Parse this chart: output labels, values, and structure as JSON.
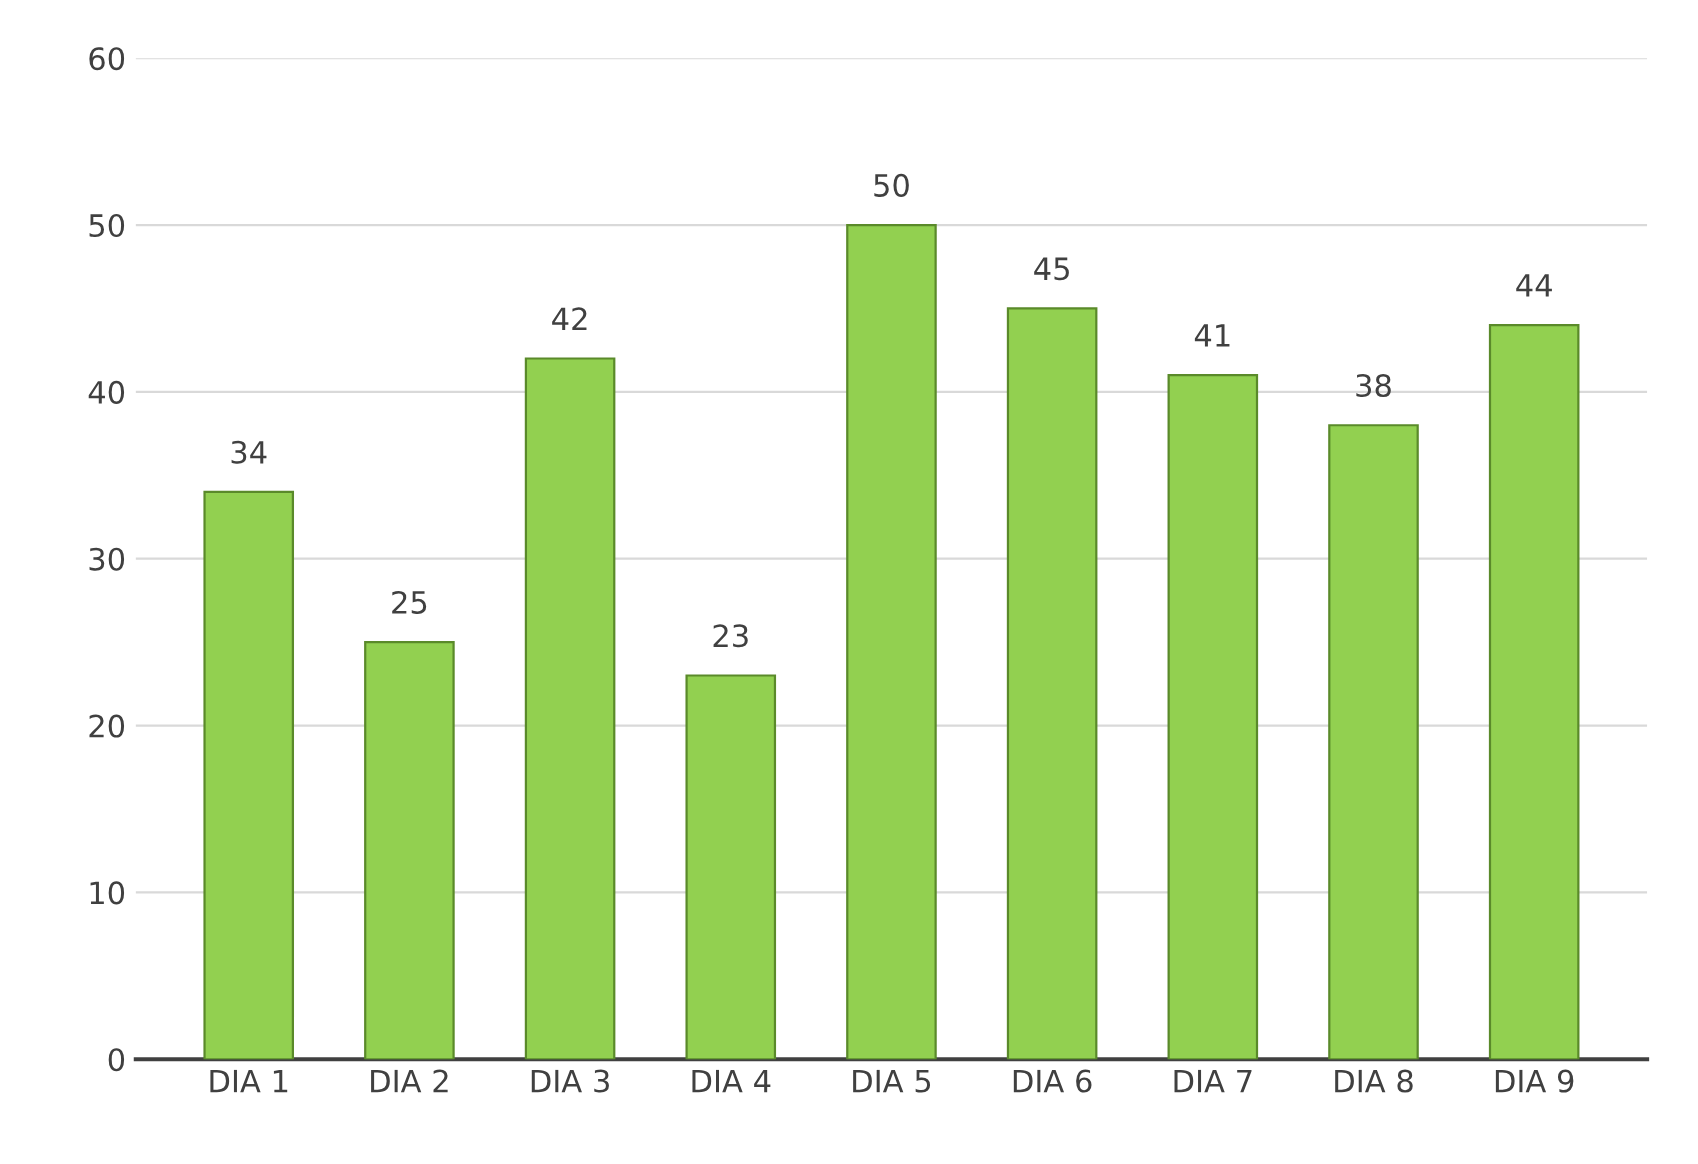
{
  "chart_data": {
    "type": "bar",
    "categories": [
      "DIA 1",
      "DIA 2",
      "DIA 3",
      "DIA 4",
      "DIA 5",
      "DIA 6",
      "DIA 7",
      "DIA 8",
      "DIA 9"
    ],
    "values": [
      34,
      25,
      42,
      23,
      50,
      45,
      41,
      38,
      44
    ],
    "color": "#92d050",
    "ylim": [
      0,
      60
    ],
    "yticks": [
      0,
      10,
      20,
      30,
      40,
      50,
      60
    ],
    "grid": "y",
    "data_labels": true
  }
}
